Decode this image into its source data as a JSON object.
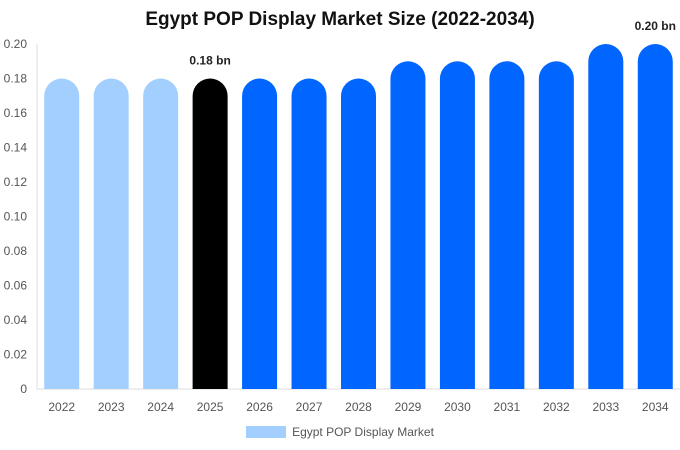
{
  "chart_data": {
    "type": "bar",
    "title": "Egypt POP Display Market Size (2022-2034)",
    "categories": [
      "2022",
      "2023",
      "2024",
      "2025",
      "2026",
      "2027",
      "2028",
      "2029",
      "2030",
      "2031",
      "2032",
      "2033",
      "2034"
    ],
    "series": [
      {
        "name": "Egypt POP Display Market",
        "values": [
          0.18,
          0.18,
          0.18,
          0.18,
          0.18,
          0.18,
          0.18,
          0.19,
          0.19,
          0.19,
          0.19,
          0.2,
          0.2
        ]
      }
    ],
    "bar_colors": [
      "#a3cfff",
      "#a3cfff",
      "#a3cfff",
      "#000000",
      "#0066ff",
      "#0066ff",
      "#0066ff",
      "#0066ff",
      "#0066ff",
      "#0066ff",
      "#0066ff",
      "#0066ff",
      "#0066ff"
    ],
    "data_labels": [
      {
        "category": "2025",
        "text": "0.18 bn"
      },
      {
        "category": "2034",
        "text": "0.20 bn"
      }
    ],
    "y_ticks": [
      "0",
      "0.02",
      "0.04",
      "0.06",
      "0.08",
      "0.10",
      "0.12",
      "0.14",
      "0.16",
      "0.18",
      "0.20"
    ],
    "ylim": [
      0,
      0.2
    ],
    "legend_position": "bottom-center",
    "grid": false
  },
  "legend_color": "#a3cfff"
}
